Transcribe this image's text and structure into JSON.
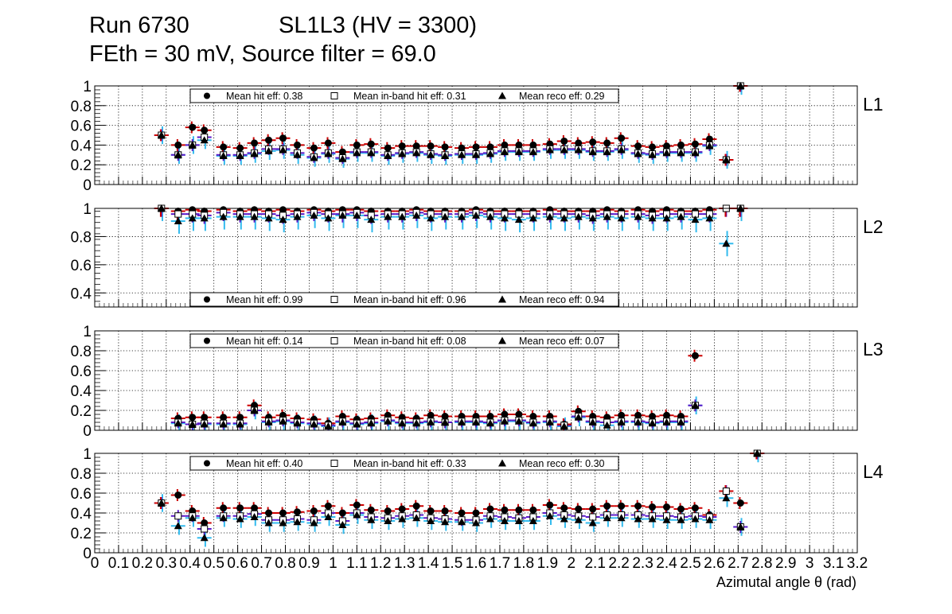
{
  "title": {
    "line1_left": "Run 6730",
    "line1_right": "SL1L3 (HV = 3300)",
    "line2": "FEth = 30 mV, Source filter = 69.0"
  },
  "colors": {
    "hit_error": "#cc0000",
    "inband_error": "#5a18c8",
    "reco_error": "#33bbee",
    "marker": "#000000",
    "grid": "#000000"
  },
  "legend_labels": {
    "hit": "Mean hit  eff:",
    "inband": "Mean in-band hit eff:",
    "reco": "Mean reco eff:"
  },
  "chart_data": {
    "type": "scatter",
    "xlabel": "Azimutal angle θ (rad)",
    "x_ticks": [
      "0",
      "0.1",
      "0.2",
      "0.3",
      "0.4",
      "0.5",
      "0.6",
      "0.7",
      "0.8",
      "0.9",
      "1",
      "1.1",
      "1.2",
      "1.3",
      "1.4",
      "1.5",
      "1.6",
      "1.7",
      "1.8",
      "1.9",
      "2",
      "2.1",
      "2.2",
      "2.3",
      "2.4",
      "2.5",
      "2.6",
      "2.7",
      "2.8",
      "2.9",
      "3",
      "3.1",
      "3.2"
    ],
    "xlim": [
      0,
      3.2
    ],
    "grid": true,
    "bins_x": [
      0.28,
      0.35,
      0.41,
      0.46,
      0.54,
      0.61,
      0.67,
      0.73,
      0.79,
      0.85,
      0.92,
      0.98,
      1.04,
      1.1,
      1.16,
      1.23,
      1.29,
      1.35,
      1.41,
      1.47,
      1.54,
      1.6,
      1.66,
      1.72,
      1.78,
      1.84,
      1.91,
      1.97,
      2.03,
      2.09,
      2.15,
      2.21,
      2.28,
      2.34,
      2.4,
      2.46,
      2.52,
      2.58,
      2.65,
      2.71,
      2.78
    ],
    "panels": [
      {
        "label": "L1",
        "ylim": [
          0,
          1
        ],
        "y_ticks": [
          "0",
          "0.2",
          "0.4",
          "0.6",
          "0.8",
          "1"
        ],
        "legend_values": {
          "hit": "0.38",
          "inband": "0.31",
          "reco": "0.29"
        },
        "hit": [
          0.5,
          0.4,
          0.58,
          0.55,
          0.38,
          0.37,
          0.42,
          0.45,
          0.47,
          0.4,
          0.37,
          0.42,
          0.33,
          0.4,
          0.41,
          0.37,
          0.39,
          0.39,
          0.39,
          0.38,
          0.37,
          0.38,
          0.38,
          0.4,
          0.4,
          0.4,
          0.41,
          0.44,
          0.42,
          0.43,
          0.42,
          0.47,
          0.39,
          0.38,
          0.39,
          0.4,
          0.41,
          0.46,
          0.25,
          1.0
        ],
        "inband": [
          0.5,
          0.3,
          0.4,
          0.48,
          0.3,
          0.3,
          0.32,
          0.36,
          0.36,
          0.32,
          0.28,
          0.32,
          0.27,
          0.33,
          0.33,
          0.3,
          0.32,
          0.33,
          0.31,
          0.3,
          0.31,
          0.31,
          0.32,
          0.34,
          0.34,
          0.34,
          0.36,
          0.36,
          0.36,
          0.34,
          0.34,
          0.36,
          0.32,
          0.31,
          0.33,
          0.33,
          0.33,
          0.4,
          0.25,
          1.0
        ],
        "reco": [
          0.5,
          0.3,
          0.4,
          0.45,
          0.29,
          0.29,
          0.31,
          0.34,
          0.35,
          0.3,
          0.27,
          0.31,
          0.26,
          0.32,
          0.32,
          0.29,
          0.31,
          0.32,
          0.3,
          0.29,
          0.3,
          0.3,
          0.31,
          0.33,
          0.33,
          0.33,
          0.35,
          0.35,
          0.35,
          0.33,
          0.33,
          0.35,
          0.31,
          0.3,
          0.32,
          0.32,
          0.32,
          0.39,
          0.25,
          1.0
        ]
      },
      {
        "label": "L2",
        "ylim": [
          0.3,
          1
        ],
        "y_ticks": [
          "0.4",
          "0.6",
          "0.8",
          "1"
        ],
        "legend_values": {
          "hit": "0.99",
          "inband": "0.96",
          "reco": "0.94"
        },
        "hit": [
          1.0,
          0.98,
          0.99,
          0.98,
          0.99,
          0.98,
          0.99,
          0.98,
          0.99,
          0.98,
          0.99,
          0.98,
          0.99,
          0.99,
          0.98,
          0.98,
          0.98,
          0.99,
          0.98,
          0.98,
          0.98,
          0.99,
          0.98,
          0.98,
          0.98,
          0.98,
          0.99,
          0.98,
          0.98,
          0.98,
          0.99,
          0.98,
          0.99,
          0.98,
          0.99,
          0.98,
          0.98,
          0.99,
          1.0,
          1.0
        ],
        "inband": [
          1.0,
          0.96,
          0.96,
          0.95,
          0.97,
          0.96,
          0.96,
          0.96,
          0.95,
          0.96,
          0.97,
          0.96,
          0.96,
          0.97,
          0.95,
          0.96,
          0.96,
          0.97,
          0.96,
          0.96,
          0.96,
          0.97,
          0.96,
          0.96,
          0.96,
          0.96,
          0.96,
          0.96,
          0.96,
          0.95,
          0.96,
          0.96,
          0.96,
          0.95,
          0.96,
          0.96,
          0.96,
          0.96,
          1.0,
          1.0
        ],
        "reco": [
          1.0,
          0.91,
          0.93,
          0.93,
          0.94,
          0.94,
          0.94,
          0.93,
          0.92,
          0.94,
          0.95,
          0.93,
          0.95,
          0.95,
          0.92,
          0.94,
          0.94,
          0.95,
          0.93,
          0.94,
          0.94,
          0.95,
          0.94,
          0.93,
          0.92,
          0.93,
          0.94,
          0.93,
          0.94,
          0.93,
          0.94,
          0.93,
          0.94,
          0.93,
          0.93,
          0.94,
          0.92,
          0.93,
          0.75,
          1.0
        ]
      },
      {
        "label": "L3",
        "ylim": [
          0,
          1
        ],
        "y_ticks": [
          "0",
          "0.2",
          "0.4",
          "0.6",
          "0.8",
          "1"
        ],
        "legend_values": {
          "hit": "0.14",
          "inband": "0.08",
          "reco": "0.07"
        },
        "hit": [
          null,
          0.12,
          0.13,
          0.13,
          0.13,
          0.13,
          0.25,
          0.13,
          0.15,
          0.12,
          0.11,
          0.07,
          0.14,
          0.11,
          0.12,
          0.15,
          0.13,
          0.12,
          0.15,
          0.14,
          0.14,
          0.14,
          0.14,
          0.16,
          0.16,
          0.14,
          0.14,
          0.06,
          0.19,
          0.14,
          0.13,
          0.15,
          0.15,
          0.14,
          0.15,
          0.14,
          0.75
        ],
        "inband": [
          null,
          0.08,
          0.06,
          0.07,
          0.07,
          0.07,
          0.2,
          0.09,
          0.1,
          0.08,
          0.07,
          0.05,
          0.09,
          0.07,
          0.08,
          0.1,
          0.08,
          0.08,
          0.09,
          0.08,
          0.09,
          0.09,
          0.08,
          0.1,
          0.1,
          0.08,
          0.09,
          0.05,
          0.14,
          0.09,
          0.08,
          0.09,
          0.09,
          0.08,
          0.09,
          0.09,
          0.25
        ],
        "reco": [
          null,
          0.07,
          0.06,
          0.06,
          0.06,
          0.06,
          0.2,
          0.08,
          0.09,
          0.07,
          0.06,
          0.04,
          0.08,
          0.06,
          0.07,
          0.09,
          0.07,
          0.07,
          0.08,
          0.08,
          0.08,
          0.08,
          0.07,
          0.09,
          0.09,
          0.07,
          0.08,
          0.04,
          0.13,
          0.08,
          0.05,
          0.08,
          0.08,
          0.07,
          0.08,
          0.08,
          0.25
        ]
      },
      {
        "label": "L4",
        "ylim": [
          0,
          1
        ],
        "y_ticks": [
          "0",
          "0.2",
          "0.4",
          "0.6",
          "0.8",
          "1"
        ],
        "legend_values": {
          "hit": "0.40",
          "inband": "0.33",
          "reco": "0.30"
        },
        "hit": [
          0.5,
          0.58,
          0.42,
          0.3,
          0.45,
          0.45,
          0.45,
          0.4,
          0.4,
          0.41,
          0.42,
          0.47,
          0.4,
          0.48,
          0.43,
          0.42,
          0.44,
          0.47,
          0.42,
          0.42,
          0.4,
          0.4,
          0.44,
          0.43,
          0.43,
          0.43,
          0.48,
          0.45,
          0.44,
          0.44,
          0.47,
          0.47,
          0.47,
          0.46,
          0.46,
          0.44,
          0.45,
          0.38,
          0.62,
          0.5,
          1.0
        ],
        "inband": [
          0.5,
          0.37,
          0.37,
          0.24,
          0.37,
          0.37,
          0.39,
          0.33,
          0.33,
          0.34,
          0.33,
          0.4,
          0.32,
          0.4,
          0.36,
          0.35,
          0.37,
          0.38,
          0.35,
          0.34,
          0.33,
          0.33,
          0.37,
          0.36,
          0.35,
          0.36,
          0.4,
          0.38,
          0.37,
          0.36,
          0.38,
          0.38,
          0.38,
          0.37,
          0.37,
          0.36,
          0.37,
          0.36,
          0.62,
          0.26,
          1.0
        ],
        "reco": [
          0.5,
          0.27,
          0.35,
          0.15,
          0.35,
          0.34,
          0.36,
          0.3,
          0.3,
          0.31,
          0.3,
          0.36,
          0.28,
          0.38,
          0.33,
          0.32,
          0.34,
          0.35,
          0.32,
          0.31,
          0.31,
          0.3,
          0.34,
          0.32,
          0.32,
          0.32,
          0.37,
          0.34,
          0.33,
          0.3,
          0.35,
          0.35,
          0.34,
          0.34,
          0.33,
          0.33,
          0.34,
          0.33,
          0.55,
          0.26,
          1.0
        ]
      }
    ]
  }
}
